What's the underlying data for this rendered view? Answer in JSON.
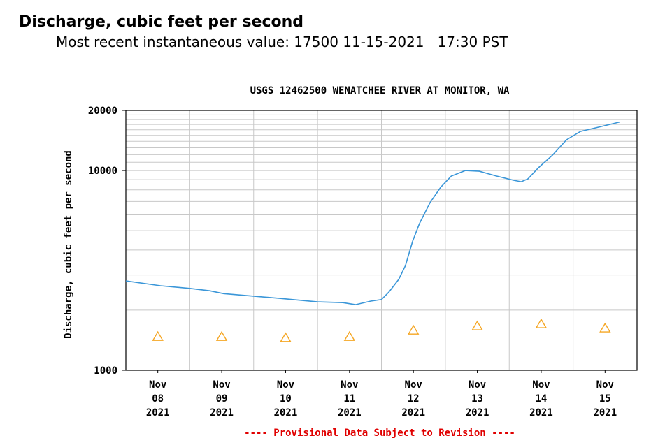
{
  "header": {
    "title": "Discharge, cubic feet per second",
    "subtitle": "Most recent instantaneous value: 17500 11-15-2021   17:30 PST"
  },
  "chart_data": {
    "type": "line",
    "title": "USGS 12462500 WENATCHEE RIVER AT MONITOR, WA",
    "ylabel": "Discharge, cubic feet per second",
    "footer": "---- Provisional Data Subject to Revision ----",
    "log_scale_y": true,
    "grid": true,
    "ylim": [
      1000,
      20000
    ],
    "yticks": [
      1000,
      10000,
      20000
    ],
    "y_minor_gridlines": [
      2000,
      3000,
      4000,
      5000,
      6000,
      7000,
      8000,
      9000,
      11000,
      12000,
      13000,
      14000,
      15000,
      16000,
      17000,
      18000,
      19000
    ],
    "xlim": [
      "11-08-2021 00:00",
      "11-16-2021 00:00"
    ],
    "xticks": [
      {
        "value": "11-08-2021 12:00",
        "label": [
          "Nov",
          "08",
          "2021"
        ]
      },
      {
        "value": "11-09-2021 12:00",
        "label": [
          "Nov",
          "09",
          "2021"
        ]
      },
      {
        "value": "11-10-2021 12:00",
        "label": [
          "Nov",
          "10",
          "2021"
        ]
      },
      {
        "value": "11-11-2021 12:00",
        "label": [
          "Nov",
          "11",
          "2021"
        ]
      },
      {
        "value": "11-12-2021 12:00",
        "label": [
          "Nov",
          "12",
          "2021"
        ]
      },
      {
        "value": "11-13-2021 12:00",
        "label": [
          "Nov",
          "13",
          "2021"
        ]
      },
      {
        "value": "11-14-2021 12:00",
        "label": [
          "Nov",
          "14",
          "2021"
        ]
      },
      {
        "value": "11-15-2021 12:00",
        "label": [
          "Nov",
          "15",
          "2021"
        ]
      }
    ],
    "x_gridlines": [
      "11-09-2021 00:00",
      "11-10-2021 00:00",
      "11-11-2021 00:00",
      "11-12-2021 00:00",
      "11-13-2021 00:00",
      "11-14-2021 00:00",
      "11-15-2021 00:00"
    ],
    "series": [
      {
        "color": "#3a96d8",
        "x": [
          "11-08-2021 00:00",
          "11-08-2021 13:00",
          "11-09-2021 00:00",
          "11-09-2021 07:30",
          "11-09-2021 12:45",
          "11-10-2021 00:00",
          "11-10-2021 09:45",
          "11-11-2021 00:00",
          "11-11-2021 09:30",
          "11-11-2021 14:15",
          "11-11-2021 20:00",
          "11-12-2021 00:00",
          "11-12-2021 02:45",
          "11-12-2021 06:30",
          "11-12-2021 09:00",
          "11-12-2021 11:45",
          "11-12-2021 14:15",
          "11-12-2021 18:15",
          "11-12-2021 22:15",
          "11-13-2021 02:15",
          "11-13-2021 07:30",
          "11-13-2021 12:45",
          "11-13-2021 19:15",
          "11-14-2021 01:45",
          "11-14-2021 04:30",
          "11-14-2021 07:00",
          "11-14-2021 11:00",
          "11-14-2021 16:15",
          "11-14-2021 21:30",
          "11-15-2021 02:45",
          "11-15-2021 10:30",
          "11-15-2021 17:30"
        ],
        "values": [
          2800,
          2650,
          2570,
          2500,
          2420,
          2350,
          2290,
          2200,
          2180,
          2130,
          2220,
          2260,
          2460,
          2850,
          3340,
          4440,
          5420,
          6910,
          8250,
          9380,
          10000,
          9920,
          9380,
          8930,
          8790,
          9080,
          10330,
          11940,
          14250,
          15700,
          16600,
          17500
        ]
      },
      {
        "type": "scatter",
        "marker": "triangle",
        "color": "#f5a623",
        "x": [
          "11-08-2021 12:00",
          "11-09-2021 12:00",
          "11-10-2021 12:00",
          "11-11-2021 12:00",
          "11-12-2021 12:00",
          "11-13-2021 12:00",
          "11-14-2021 12:00",
          "11-15-2021 12:00"
        ],
        "values": [
          1470,
          1470,
          1450,
          1470,
          1580,
          1660,
          1700,
          1620
        ]
      }
    ]
  }
}
